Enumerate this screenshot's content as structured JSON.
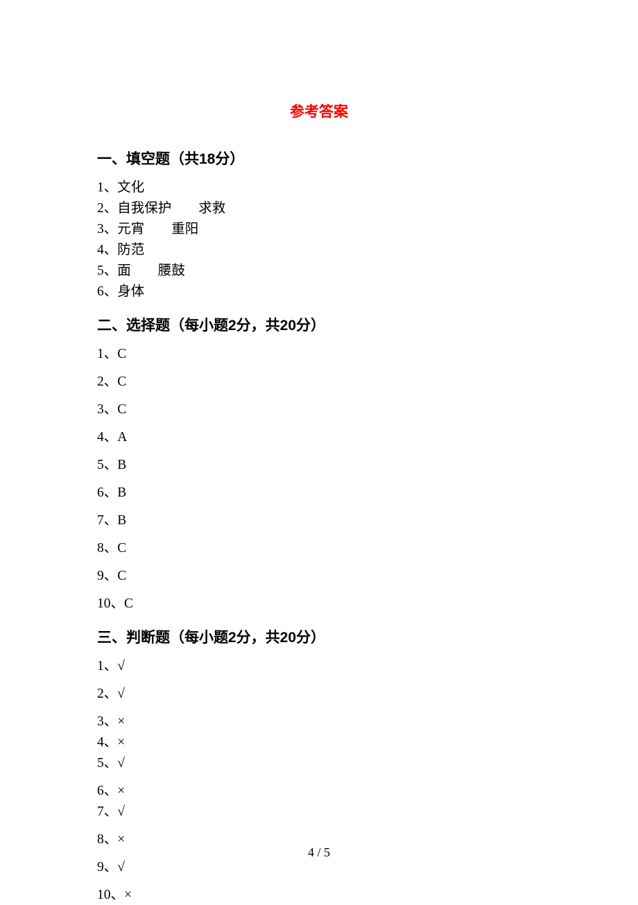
{
  "title": "参考答案",
  "section1": {
    "header": "一、填空题（共18分）",
    "items": [
      "1、文化",
      "2、自我保护  求救",
      "3、元宵  重阳",
      "4、防范",
      "5、面  腰鼓",
      "6、身体"
    ]
  },
  "section2": {
    "header": "二、选择题（每小题2分，共20分）",
    "items": [
      "1、C",
      "2、C",
      "3、C",
      "4、A",
      "5、B",
      "6、B",
      "7、B",
      "8、C",
      "9、C",
      "10、C"
    ]
  },
  "section3": {
    "header": "三、判断题（每小题2分，共20分）",
    "items": [
      "1、√",
      "2、√",
      "3、×",
      "4、×",
      "5、√",
      "6、×",
      "7、√",
      "8、×",
      "9、√",
      "10、×"
    ],
    "spacing": [
      "spaced",
      "spaced",
      "tight",
      "tight",
      "spaced",
      "tight",
      "spaced",
      "spaced",
      "spaced",
      "tight"
    ]
  },
  "pageNumber": "4 / 5",
  "colors": {
    "title": "#ff0000",
    "text": "#000000",
    "background": "#ffffff"
  },
  "fonts": {
    "body": "SimSun",
    "heading": "SimHei",
    "title_size": 21,
    "header_size": 21,
    "body_size": 19.5,
    "page_number_size": 18
  }
}
